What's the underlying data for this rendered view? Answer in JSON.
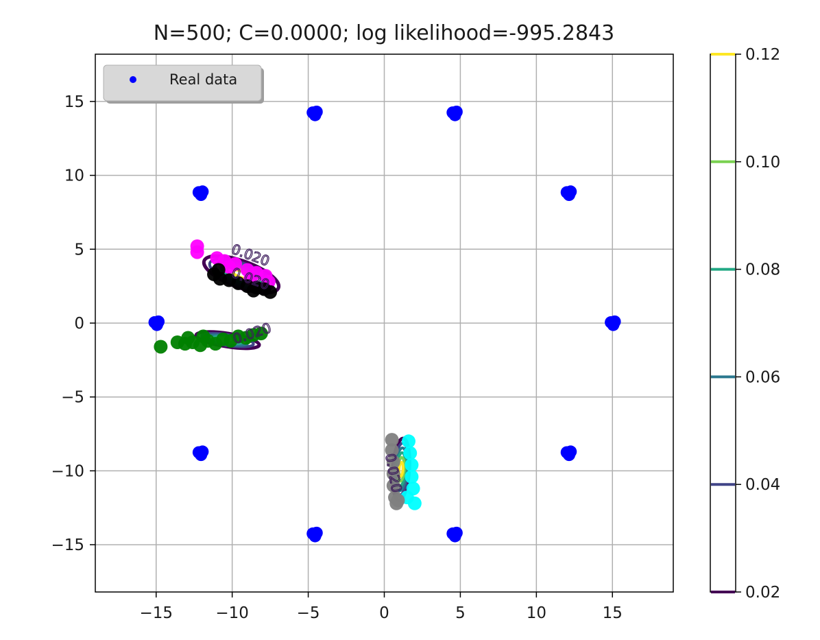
{
  "chart_data": {
    "type": "scatter",
    "title": "N=500; C=0.0000; log likelihood=-995.2843",
    "xlim": [
      -19,
      19
    ],
    "ylim": [
      -18.2,
      18.2
    ],
    "x_ticks": [
      -15,
      -10,
      -5,
      0,
      5,
      10,
      15
    ],
    "x_tick_labels": [
      "−15",
      "−10",
      "−5",
      "0",
      "5",
      "10",
      "15"
    ],
    "y_ticks": [
      15,
      10,
      5,
      0,
      -5,
      -10,
      -15
    ],
    "y_tick_labels": [
      "15",
      "10",
      "5",
      "0",
      "−5",
      "−10",
      "−15"
    ],
    "grid": true,
    "legend": {
      "placement": "upper-left",
      "entries": [
        {
          "label": "Real data",
          "color": "#0000ff"
        }
      ]
    },
    "real_data": {
      "color": "#0000ff",
      "clusters": [
        {
          "x": 15.0,
          "y": 0.0
        },
        {
          "x": 12.1,
          "y": 8.8
        },
        {
          "x": 4.6,
          "y": 14.2
        },
        {
          "x": -4.6,
          "y": 14.2
        },
        {
          "x": -12.1,
          "y": 8.8
        },
        {
          "x": -15.0,
          "y": 0.0
        },
        {
          "x": -12.1,
          "y": -8.8
        },
        {
          "x": -4.6,
          "y": -14.3
        },
        {
          "x": 4.6,
          "y": -14.3
        },
        {
          "x": 12.1,
          "y": -8.8
        }
      ]
    },
    "generated_points": [
      {
        "color": "#ff00ff",
        "points": [
          [
            -12.3,
            5.2
          ],
          [
            -12.3,
            4.8
          ],
          [
            -11.0,
            4.4
          ],
          [
            -10.5,
            4.2
          ],
          [
            -9.8,
            4.0
          ],
          [
            -9.0,
            3.6
          ],
          [
            -8.4,
            3.4
          ],
          [
            -7.8,
            3.2
          ],
          [
            -7.6,
            2.8
          ],
          [
            -10.2,
            3.8
          ],
          [
            -8.8,
            3.0
          ]
        ]
      },
      {
        "color": "#000000",
        "points": [
          [
            -11.2,
            3.3
          ],
          [
            -10.8,
            3.0
          ],
          [
            -10.2,
            2.9
          ],
          [
            -9.6,
            2.7
          ],
          [
            -9.0,
            2.5
          ],
          [
            -8.4,
            2.4
          ],
          [
            -7.9,
            2.3
          ],
          [
            -7.5,
            2.1
          ],
          [
            -10.9,
            3.6
          ],
          [
            -8.6,
            2.2
          ]
        ]
      },
      {
        "color": "#008000",
        "points": [
          [
            -14.7,
            -1.6
          ],
          [
            -13.6,
            -1.3
          ],
          [
            -13.1,
            -1.4
          ],
          [
            -12.6,
            -1.3
          ],
          [
            -12.1,
            -1.5
          ],
          [
            -11.6,
            -1.2
          ],
          [
            -11.1,
            -1.4
          ],
          [
            -10.6,
            -1.1
          ],
          [
            -10.1,
            -1.2
          ],
          [
            -9.6,
            -0.9
          ],
          [
            -9.1,
            -1.0
          ],
          [
            -8.6,
            -0.8
          ],
          [
            -8.1,
            -0.7
          ],
          [
            -12.9,
            -1.0
          ],
          [
            -11.9,
            -0.9
          ]
        ]
      },
      {
        "color": "#00ffff",
        "points": [
          [
            1.6,
            -8.0
          ],
          [
            1.7,
            -8.8
          ],
          [
            1.8,
            -9.6
          ],
          [
            1.8,
            -10.4
          ],
          [
            1.9,
            -11.2
          ],
          [
            2.0,
            -12.2
          ],
          [
            1.5,
            -11.8
          ]
        ]
      },
      {
        "color": "#808080",
        "points": [
          [
            0.5,
            -7.9
          ],
          [
            0.5,
            -8.6
          ],
          [
            0.6,
            -9.4
          ],
          [
            0.6,
            -10.2
          ],
          [
            0.6,
            -11.0
          ],
          [
            0.7,
            -11.8
          ],
          [
            0.8,
            -12.2
          ],
          [
            0.9,
            -12.0
          ]
        ]
      }
    ],
    "density_contours": [
      {
        "cx": -9.4,
        "cy": 3.3,
        "rx": 2.6,
        "ry": 0.9,
        "angle_deg": -20,
        "levels": [
          0.02,
          0.04,
          0.06,
          0.08,
          0.1,
          0.12
        ]
      },
      {
        "cx": -10.3,
        "cy": -1.15,
        "rx": 2.1,
        "ry": 0.45,
        "angle_deg": -9,
        "levels": [
          0.02,
          0.04,
          0.06,
          0.08,
          0.1
        ]
      },
      {
        "cx": 1.1,
        "cy": -9.9,
        "rx": 0.55,
        "ry": 2.1,
        "angle_deg": -4,
        "levels": [
          0.02,
          0.04,
          0.06,
          0.08,
          0.1,
          0.12
        ]
      }
    ],
    "contour_labels": [
      {
        "text": "0.020",
        "x": -8.9,
        "y": 4.3,
        "angle_deg": 20
      },
      {
        "text": "0.020",
        "x": -8.9,
        "y": 2.7,
        "angle_deg": 20
      },
      {
        "text": "0.020",
        "x": -8.6,
        "y": -1.0,
        "angle_deg": -18
      },
      {
        "text": "0.020",
        "x": 0.3,
        "y": -10.2,
        "angle_deg": 80
      }
    ],
    "colorbar": {
      "range": [
        0.02,
        0.12
      ],
      "ticks": [
        0.02,
        0.04,
        0.06,
        0.08,
        0.1,
        0.12
      ],
      "tick_labels": [
        "0.02",
        "0.04",
        "0.06",
        "0.08",
        "0.10",
        "0.12"
      ],
      "colors": [
        "#440154",
        "#414487",
        "#2a788e",
        "#22a884",
        "#7ad151",
        "#fde725"
      ]
    }
  }
}
